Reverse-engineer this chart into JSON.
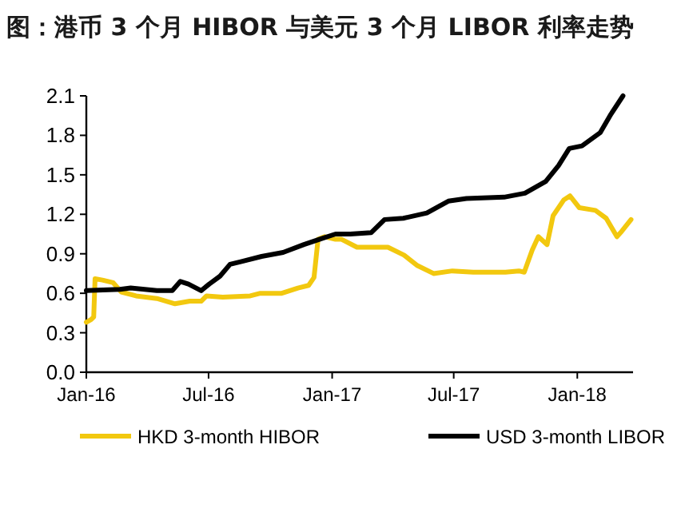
{
  "chart_data": {
    "type": "line",
    "title": "图：港币 3 个月 HIBOR 与美元 3 个月 LIBOR 利率走势",
    "xlim": [
      "2016-01-01",
      "2018-03-25"
    ],
    "xticks": [
      {
        "value": "2016-01-01",
        "label": "Jan-16"
      },
      {
        "value": "2016-07-01",
        "label": "Jul-16"
      },
      {
        "value": "2017-01-01",
        "label": "Jan-17"
      },
      {
        "value": "2017-07-01",
        "label": "Jul-17"
      },
      {
        "value": "2018-01-01",
        "label": "Jan-18"
      }
    ],
    "ylim": [
      0,
      2.1
    ],
    "yticks": [
      {
        "value": 0,
        "label": "0.0"
      },
      0.3,
      0.6,
      0.9,
      1.2,
      1.5,
      1.8,
      2.1
    ],
    "grid": false,
    "legend": "bottom",
    "series": [
      {
        "name": "HKD 3-month HIBOR",
        "color": "#f2c80f",
        "x": [
          "2016-01-01",
          "2016-01-08",
          "2016-01-12",
          "2016-01-14",
          "2016-01-25",
          "2016-02-10",
          "2016-02-22",
          "2016-03-15",
          "2016-04-15",
          "2016-05-12",
          "2016-06-03",
          "2016-06-20",
          "2016-06-28",
          "2016-07-22",
          "2016-09-01",
          "2016-09-16",
          "2016-10-18",
          "2016-11-11",
          "2016-11-27",
          "2016-12-05",
          "2016-12-11",
          "2016-12-21",
          "2017-01-06",
          "2017-01-15",
          "2017-02-07",
          "2017-03-25",
          "2017-04-18",
          "2017-05-08",
          "2017-06-01",
          "2017-06-29",
          "2017-07-30",
          "2017-09-16",
          "2017-10-06",
          "2017-10-14",
          "2017-10-26",
          "2017-11-04",
          "2017-11-17",
          "2017-11-26",
          "2017-12-12",
          "2017-12-21",
          "2018-01-04",
          "2018-01-28",
          "2018-02-13",
          "2018-03-01",
          "2018-03-08",
          "2018-03-22"
        ],
        "values": [
          0.38,
          0.4,
          0.42,
          0.71,
          0.7,
          0.68,
          0.61,
          0.58,
          0.56,
          0.52,
          0.54,
          0.54,
          0.58,
          0.57,
          0.58,
          0.6,
          0.6,
          0.64,
          0.66,
          0.72,
          1.01,
          1.03,
          1.01,
          1.01,
          0.95,
          0.95,
          0.89,
          0.81,
          0.75,
          0.77,
          0.76,
          0.76,
          0.77,
          0.76,
          0.93,
          1.03,
          0.97,
          1.19,
          1.31,
          1.34,
          1.25,
          1.23,
          1.17,
          1.03,
          1.07,
          1.16
        ]
      },
      {
        "name": "USD 3-month LIBOR",
        "color": "#000000",
        "x": [
          "2016-01-01",
          "2016-02-20",
          "2016-03-07",
          "2016-04-15",
          "2016-05-08",
          "2016-05-20",
          "2016-06-01",
          "2016-06-20",
          "2016-07-02",
          "2016-07-18",
          "2016-08-02",
          "2016-08-18",
          "2016-09-18",
          "2016-10-20",
          "2016-11-20",
          "2016-12-13",
          "2017-01-06",
          "2017-01-28",
          "2017-02-28",
          "2017-03-20",
          "2017-04-17",
          "2017-05-22",
          "2017-06-23",
          "2017-07-20",
          "2017-09-14",
          "2017-10-15",
          "2017-11-15",
          "2017-12-04",
          "2017-12-20",
          "2018-01-08",
          "2018-02-04",
          "2018-02-20",
          "2018-03-10"
        ],
        "values": [
          0.62,
          0.63,
          0.64,
          0.62,
          0.62,
          0.69,
          0.67,
          0.62,
          0.67,
          0.73,
          0.82,
          0.84,
          0.88,
          0.91,
          0.97,
          1.01,
          1.05,
          1.05,
          1.06,
          1.16,
          1.17,
          1.21,
          1.3,
          1.32,
          1.33,
          1.36,
          1.45,
          1.57,
          1.7,
          1.72,
          1.82,
          1.96,
          2.1
        ]
      }
    ]
  }
}
